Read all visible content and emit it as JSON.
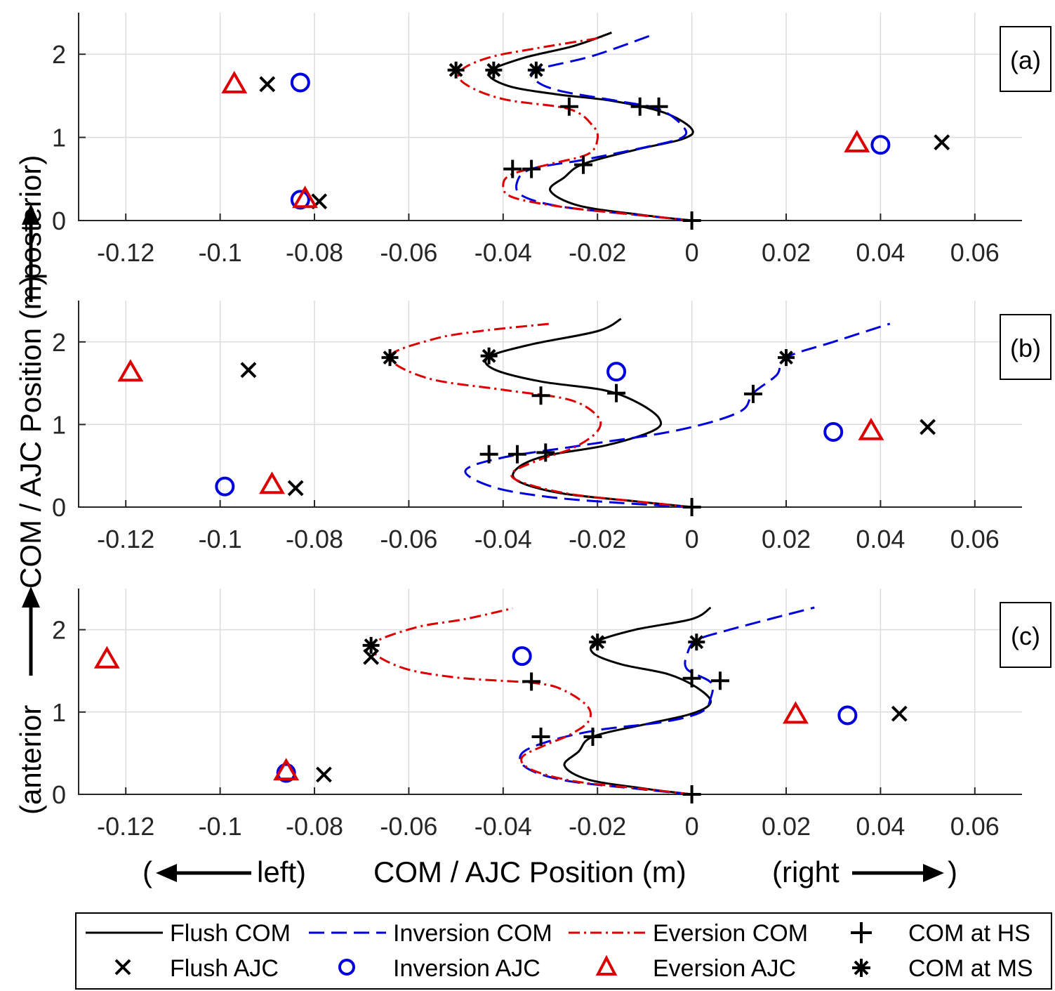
{
  "chart_data": [
    {
      "panel_label": "(a)",
      "type": "line",
      "xlim": [
        -0.13,
        0.07
      ],
      "ylim": [
        0,
        2.5
      ],
      "xticks": [
        -0.12,
        -0.1,
        -0.08,
        -0.06,
        -0.04,
        -0.02,
        0,
        0.02,
        0.04,
        0.06
      ],
      "yticks": [
        0,
        1,
        2
      ],
      "series": [
        {
          "name": "Flush COM",
          "style": "solid",
          "color": "#000000",
          "points": [
            [
              0,
              0
            ],
            [
              -0.011,
              0.07
            ],
            [
              -0.024,
              0.18
            ],
            [
              -0.03,
              0.36
            ],
            [
              -0.027,
              0.52
            ],
            [
              -0.023,
              0.68
            ],
            [
              -0.012,
              0.85
            ],
            [
              -0.002,
              0.98
            ],
            [
              0,
              1.1
            ],
            [
              -0.006,
              1.3
            ],
            [
              -0.017,
              1.44
            ],
            [
              -0.029,
              1.52
            ],
            [
              -0.039,
              1.62
            ],
            [
              -0.043,
              1.78
            ],
            [
              -0.036,
              1.95
            ],
            [
              -0.025,
              2.1
            ],
            [
              -0.017,
              2.26
            ]
          ]
        },
        {
          "name": "Inversion COM",
          "style": "dashed",
          "color": "#0000dd",
          "points": [
            [
              0,
              0
            ],
            [
              -0.012,
              0.07
            ],
            [
              -0.028,
              0.17
            ],
            [
              -0.036,
              0.3
            ],
            [
              -0.037,
              0.47
            ],
            [
              -0.034,
              0.62
            ],
            [
              -0.023,
              0.73
            ],
            [
              -0.01,
              0.88
            ],
            [
              -0.002,
              1.0
            ],
            [
              -0.002,
              1.14
            ],
            [
              -0.007,
              1.34
            ],
            [
              -0.016,
              1.44
            ],
            [
              -0.028,
              1.56
            ],
            [
              -0.033,
              1.68
            ],
            [
              -0.033,
              1.81
            ],
            [
              -0.021,
              1.98
            ],
            [
              -0.008,
              2.24
            ]
          ]
        },
        {
          "name": "Eversion COM",
          "style": "dashdot",
          "color": "#dd0000",
          "points": [
            [
              0,
              0
            ],
            [
              -0.012,
              0.07
            ],
            [
              -0.027,
              0.16
            ],
            [
              -0.038,
              0.28
            ],
            [
              -0.04,
              0.43
            ],
            [
              -0.038,
              0.56
            ],
            [
              -0.03,
              0.68
            ],
            [
              -0.022,
              0.8
            ],
            [
              -0.02,
              0.98
            ],
            [
              -0.021,
              1.14
            ],
            [
              -0.026,
              1.34
            ],
            [
              -0.04,
              1.46
            ],
            [
              -0.048,
              1.64
            ],
            [
              -0.049,
              1.8
            ],
            [
              -0.043,
              1.96
            ],
            [
              -0.032,
              2.08
            ],
            [
              -0.019,
              2.2
            ]
          ]
        }
      ],
      "com_hs": [
        [
          0,
          0
        ],
        [
          -0.038,
          0.62
        ],
        [
          -0.034,
          0.62
        ],
        [
          -0.023,
          0.67
        ],
        [
          -0.026,
          1.37
        ],
        [
          -0.011,
          1.37
        ],
        [
          -0.007,
          1.37
        ]
      ],
      "com_ms": [
        [
          -0.05,
          1.81
        ],
        [
          -0.042,
          1.81
        ],
        [
          -0.033,
          1.81
        ]
      ],
      "flush_ajc": [
        [
          -0.09,
          1.64
        ],
        [
          -0.079,
          0.23
        ],
        [
          0.053,
          0.94
        ]
      ],
      "inversion_ajc": [
        [
          -0.083,
          1.66
        ],
        [
          -0.083,
          0.25
        ],
        [
          0.04,
          0.91
        ]
      ],
      "eversion_ajc": [
        [
          -0.097,
          1.64
        ],
        [
          -0.082,
          0.26
        ],
        [
          0.035,
          0.93
        ]
      ]
    },
    {
      "panel_label": "(b)",
      "type": "line",
      "xlim": [
        -0.13,
        0.07
      ],
      "ylim": [
        0,
        2.5
      ],
      "xticks": [
        -0.12,
        -0.1,
        -0.08,
        -0.06,
        -0.04,
        -0.02,
        0,
        0.02,
        0.04,
        0.06
      ],
      "yticks": [
        0,
        1,
        2
      ],
      "series": [
        {
          "name": "Flush COM",
          "style": "solid",
          "color": "#000000",
          "points": [
            [
              0,
              0
            ],
            [
              -0.012,
              0.07
            ],
            [
              -0.028,
              0.17
            ],
            [
              -0.037,
              0.32
            ],
            [
              -0.037,
              0.47
            ],
            [
              -0.031,
              0.62
            ],
            [
              -0.018,
              0.75
            ],
            [
              -0.008,
              0.93
            ],
            [
              -0.007,
              1.08
            ],
            [
              -0.012,
              1.28
            ],
            [
              -0.019,
              1.42
            ],
            [
              -0.032,
              1.52
            ],
            [
              -0.042,
              1.67
            ],
            [
              -0.043,
              1.82
            ],
            [
              -0.034,
              1.97
            ],
            [
              -0.02,
              2.13
            ],
            [
              -0.015,
              2.28
            ]
          ]
        },
        {
          "name": "Inversion COM",
          "style": "dashed",
          "color": "#0000dd",
          "points": [
            [
              0,
              0
            ],
            [
              -0.015,
              0.05
            ],
            [
              -0.03,
              0.12
            ],
            [
              -0.042,
              0.24
            ],
            [
              -0.048,
              0.44
            ],
            [
              -0.04,
              0.6
            ],
            [
              -0.023,
              0.75
            ],
            [
              -0.003,
              0.93
            ],
            [
              0.01,
              1.15
            ],
            [
              0.013,
              1.38
            ],
            [
              0.018,
              1.6
            ],
            [
              0.02,
              1.81
            ],
            [
              0.03,
              2.0
            ],
            [
              0.042,
              2.22
            ]
          ]
        },
        {
          "name": "Eversion COM",
          "style": "dashdot",
          "color": "#dd0000",
          "points": [
            [
              0,
              0
            ],
            [
              -0.012,
              0.07
            ],
            [
              -0.026,
              0.16
            ],
            [
              -0.036,
              0.3
            ],
            [
              -0.038,
              0.42
            ],
            [
              -0.032,
              0.58
            ],
            [
              -0.025,
              0.72
            ],
            [
              -0.02,
              0.92
            ],
            [
              -0.02,
              1.1
            ],
            [
              -0.026,
              1.3
            ],
            [
              -0.04,
              1.42
            ],
            [
              -0.056,
              1.56
            ],
            [
              -0.064,
              1.82
            ],
            [
              -0.055,
              2.03
            ],
            [
              -0.045,
              2.13
            ],
            [
              -0.03,
              2.22
            ]
          ]
        }
      ],
      "com_hs": [
        [
          0,
          0
        ],
        [
          -0.043,
          0.64
        ],
        [
          -0.037,
          0.64
        ],
        [
          -0.031,
          0.66
        ],
        [
          -0.032,
          1.35
        ],
        [
          -0.016,
          1.38
        ],
        [
          0.013,
          1.37
        ]
      ],
      "com_ms": [
        [
          -0.064,
          1.81
        ],
        [
          -0.043,
          1.83
        ],
        [
          0.02,
          1.81
        ]
      ],
      "flush_ajc": [
        [
          -0.094,
          1.66
        ],
        [
          -0.084,
          0.23
        ],
        [
          0.05,
          0.97
        ]
      ],
      "inversion_ajc": [
        [
          -0.016,
          1.64
        ],
        [
          -0.099,
          0.25
        ],
        [
          0.03,
          0.91
        ]
      ],
      "eversion_ajc": [
        [
          -0.119,
          1.63
        ],
        [
          -0.089,
          0.27
        ],
        [
          0.038,
          0.92
        ]
      ]
    },
    {
      "panel_label": "(c)",
      "type": "line",
      "xlim": [
        -0.13,
        0.07
      ],
      "ylim": [
        0,
        2.5
      ],
      "xticks": [
        -0.12,
        -0.1,
        -0.08,
        -0.06,
        -0.04,
        -0.02,
        0,
        0.02,
        0.04,
        0.06
      ],
      "yticks": [
        0,
        1,
        2
      ],
      "series": [
        {
          "name": "Flush COM",
          "style": "solid",
          "color": "#000000",
          "points": [
            [
              0,
              0
            ],
            [
              -0.01,
              0.07
            ],
            [
              -0.022,
              0.18
            ],
            [
              -0.027,
              0.35
            ],
            [
              -0.024,
              0.52
            ],
            [
              -0.021,
              0.7
            ],
            [
              -0.01,
              0.85
            ],
            [
              0,
              0.98
            ],
            [
              0.004,
              1.12
            ],
            [
              0.001,
              1.3
            ],
            [
              -0.005,
              1.46
            ],
            [
              -0.015,
              1.58
            ],
            [
              -0.021,
              1.72
            ],
            [
              -0.02,
              1.86
            ],
            [
              -0.012,
              2.0
            ],
            [
              0,
              2.13
            ],
            [
              0.004,
              2.27
            ]
          ]
        },
        {
          "name": "Inversion COM",
          "style": "dashed",
          "color": "#0000dd",
          "points": [
            [
              0,
              0
            ],
            [
              -0.012,
              0.07
            ],
            [
              -0.027,
              0.17
            ],
            [
              -0.035,
              0.32
            ],
            [
              -0.036,
              0.5
            ],
            [
              -0.03,
              0.65
            ],
            [
              -0.02,
              0.78
            ],
            [
              -0.006,
              0.88
            ],
            [
              0.002,
              1.0
            ],
            [
              0.004,
              1.17
            ],
            [
              0.004,
              1.36
            ],
            [
              -0.001,
              1.52
            ],
            [
              -0.001,
              1.7
            ],
            [
              0.001,
              1.87
            ],
            [
              0.008,
              2.0
            ],
            [
              0.026,
              2.27
            ]
          ]
        },
        {
          "name": "Eversion COM",
          "style": "dashdot",
          "color": "#dd0000",
          "points": [
            [
              0,
              0
            ],
            [
              -0.011,
              0.07
            ],
            [
              -0.025,
              0.16
            ],
            [
              -0.034,
              0.3
            ],
            [
              -0.036,
              0.45
            ],
            [
              -0.031,
              0.6
            ],
            [
              -0.026,
              0.72
            ],
            [
              -0.022,
              0.88
            ],
            [
              -0.022,
              1.06
            ],
            [
              -0.027,
              1.26
            ],
            [
              -0.033,
              1.35
            ],
            [
              -0.05,
              1.42
            ],
            [
              -0.062,
              1.55
            ],
            [
              -0.068,
              1.8
            ],
            [
              -0.059,
              2.02
            ],
            [
              -0.048,
              2.13
            ],
            [
              -0.038,
              2.26
            ]
          ]
        }
      ],
      "com_hs": [
        [
          0,
          0
        ],
        [
          -0.032,
          0.7
        ],
        [
          -0.021,
          0.7
        ],
        [
          -0.034,
          1.37
        ],
        [
          0,
          1.41
        ],
        [
          0.006,
          1.38
        ]
      ],
      "com_ms": [
        [
          -0.068,
          1.81
        ],
        [
          -0.02,
          1.85
        ],
        [
          0.001,
          1.85
        ]
      ],
      "flush_ajc": [
        [
          -0.068,
          1.67
        ],
        [
          -0.078,
          0.24
        ],
        [
          0.044,
          0.98
        ]
      ],
      "inversion_ajc": [
        [
          -0.036,
          1.68
        ],
        [
          -0.086,
          0.26
        ],
        [
          0.033,
          0.96
        ]
      ],
      "eversion_ajc": [
        [
          -0.124,
          1.64
        ],
        [
          -0.086,
          0.28
        ],
        [
          0.022,
          0.97
        ]
      ]
    }
  ],
  "labels": {
    "y_top": "(anterior",
    "y_middle": "COM / AJC  Position (m)",
    "y_bottom": "posterior)",
    "x_left": "(",
    "x_left_word": "left)",
    "x_center": "COM / AJC Position (m)",
    "x_right_word": "(right",
    "x_right_paren": ")"
  },
  "legend": {
    "flush_com": "Flush COM",
    "inversion_com": "Inversion COM",
    "eversion_com": "Eversion COM",
    "com_hs": "COM at HS",
    "flush_ajc": "Flush AJC",
    "inversion_ajc": "Inversion AJC",
    "eversion_ajc": "Eversion AJC",
    "com_ms": "COM at MS"
  },
  "colors": {
    "flush": "#000000",
    "inversion": "#0000dd",
    "eversion": "#dd0000"
  }
}
